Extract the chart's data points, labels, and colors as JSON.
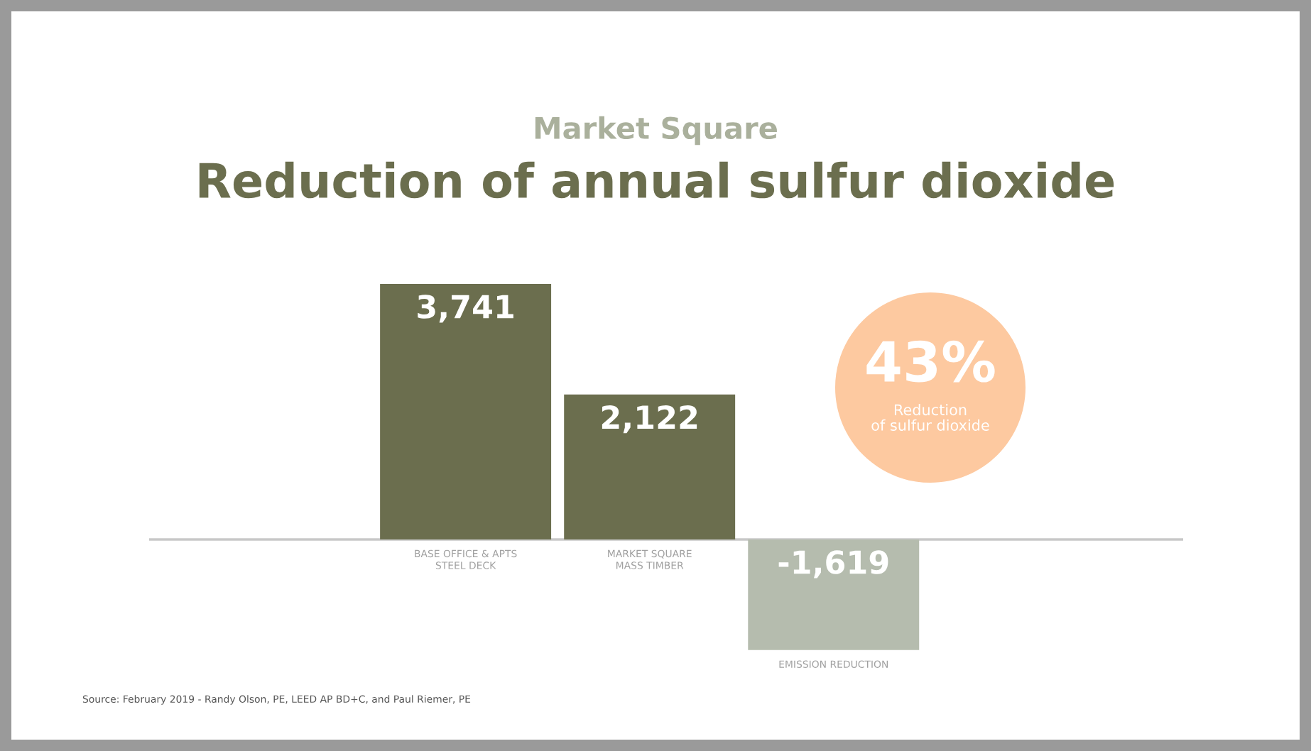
{
  "chart_data": {
    "type": "bar",
    "subtitle": "Market Square",
    "title": "Reduction of annual sulfur dioxide",
    "categories": [
      "BASE OFFICE & APTS\nSTEEL DECK",
      "MARKET SQUARE\nMASS TIMBER",
      "EMISSION REDUCTION"
    ],
    "values": [
      3741,
      2122,
      -1619
    ],
    "colors": [
      "#6b6e4e",
      "#6b6e4e",
      "#b5bcae"
    ],
    "value_labels": [
      "3,741",
      "2,122",
      "-1,619"
    ],
    "annotations": [
      "43%",
      "Reduction\nof sulfur dioxide",
      "Source: February 2019 - Randy Olson, PE, LEED AP BD+C, and Paul Riemer, PE"
    ]
  }
}
